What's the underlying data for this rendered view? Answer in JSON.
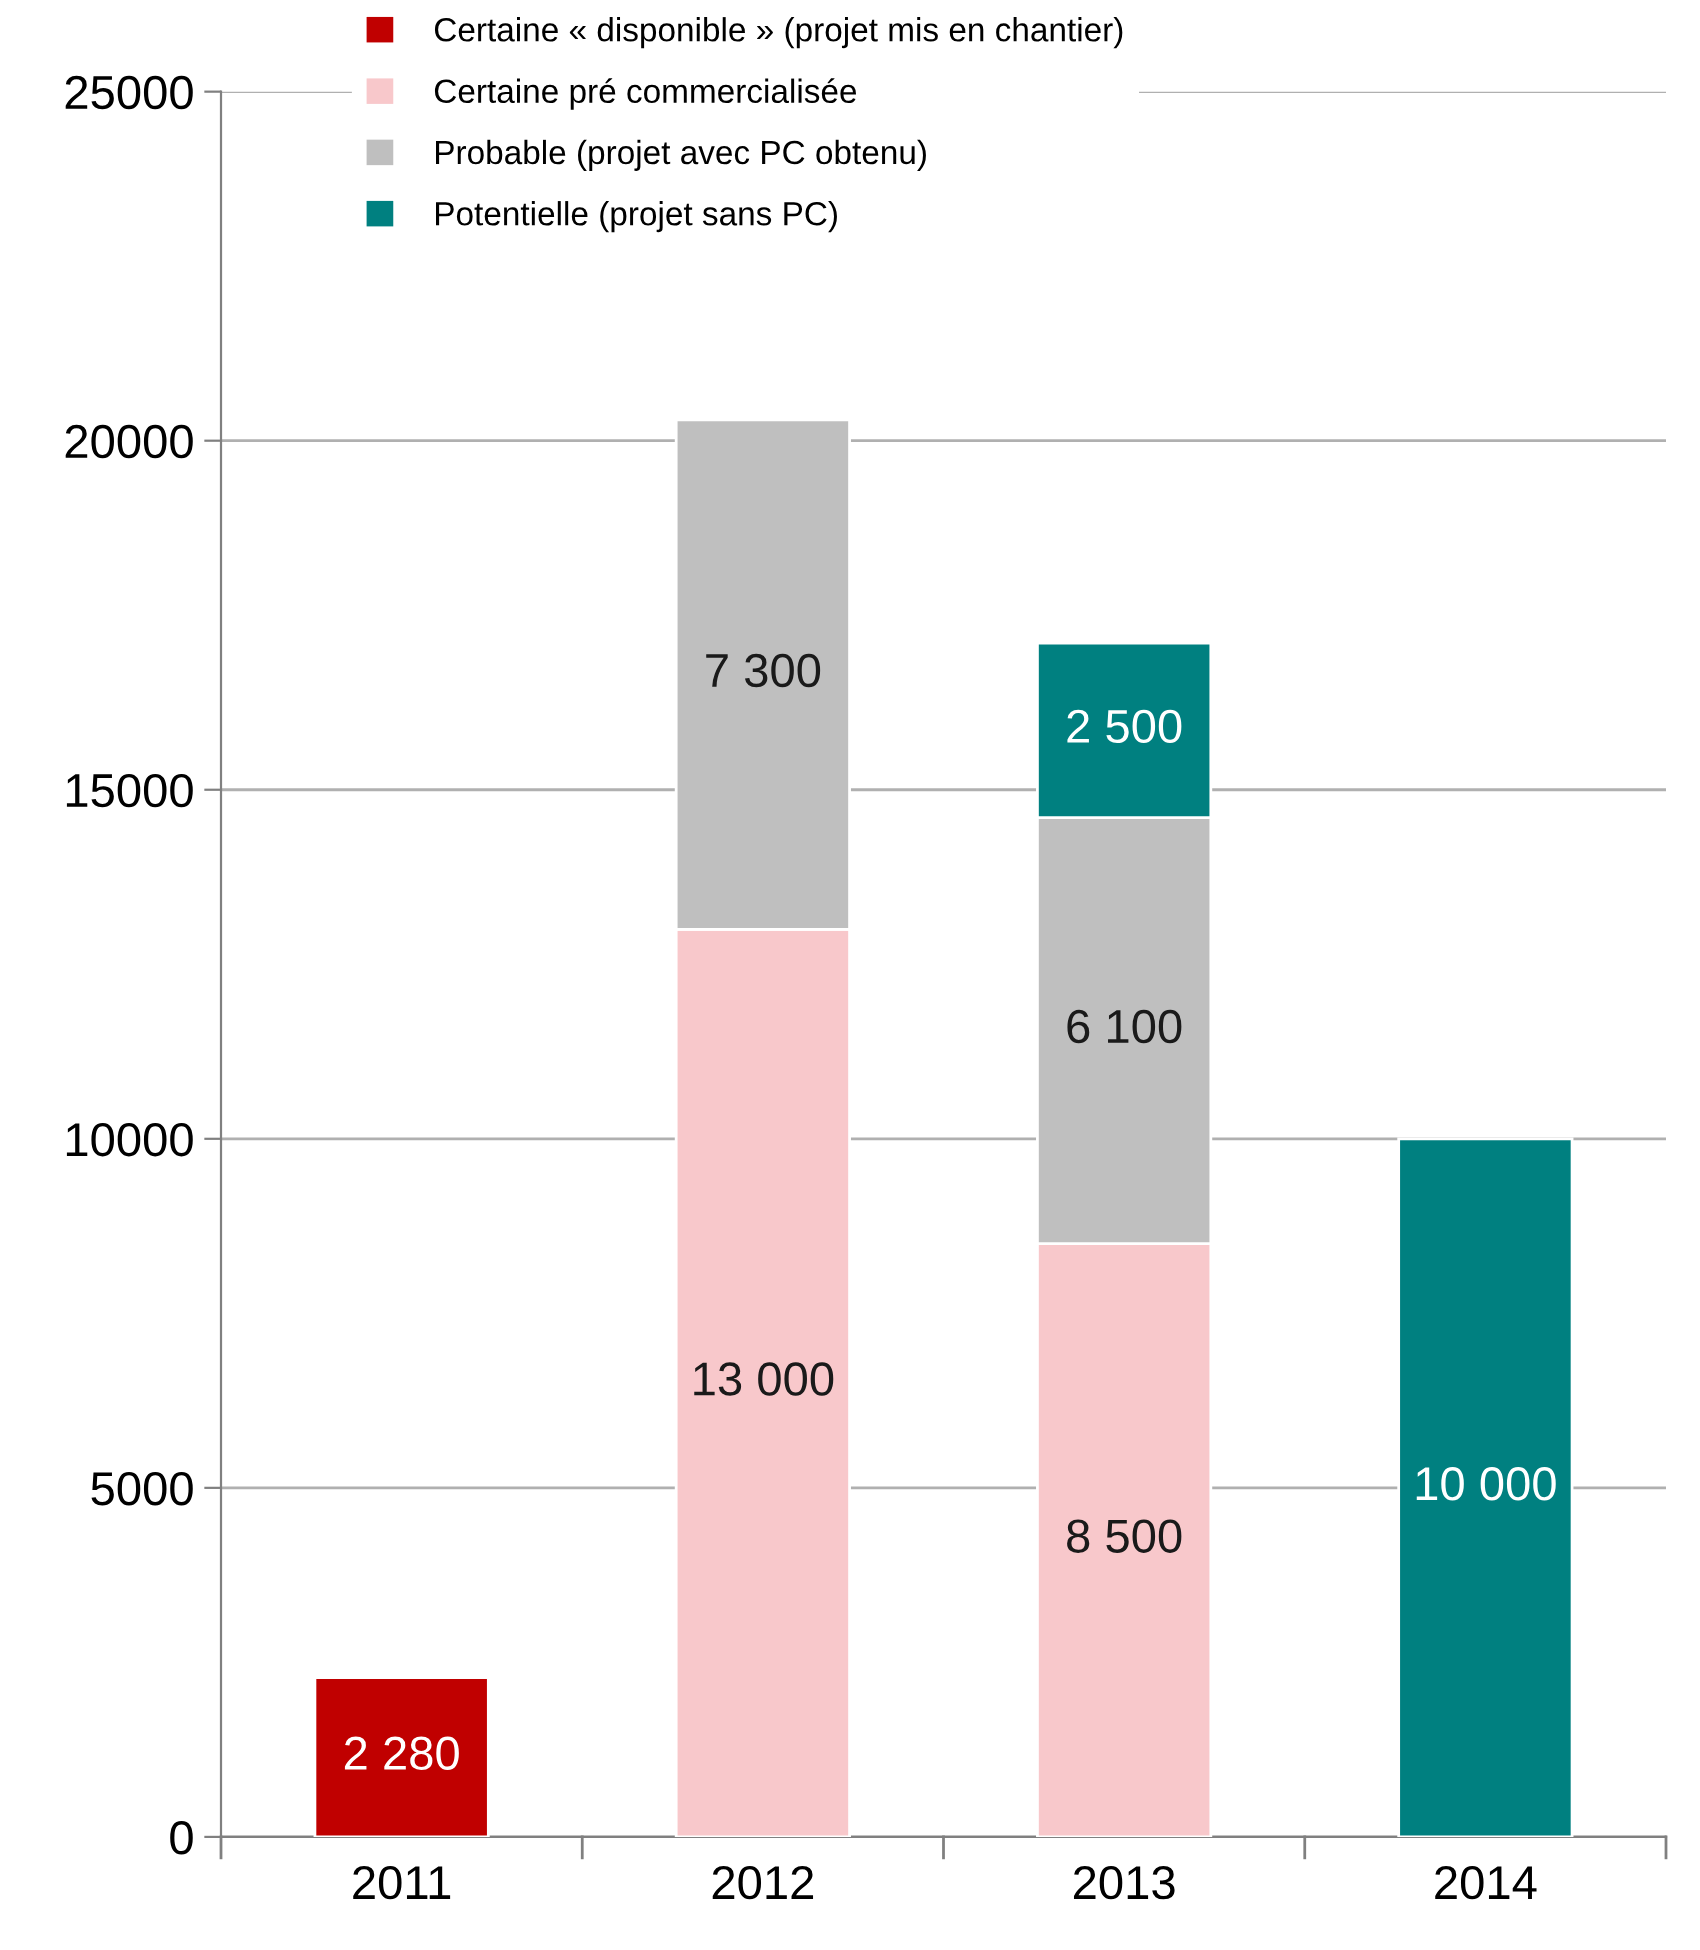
{
  "chart_data": {
    "type": "bar",
    "stacked": true,
    "categories": [
      "2011",
      "2012",
      "2013",
      "2014"
    ],
    "series": [
      {
        "name": "Certaine « disponible » (projet mis en chantier)",
        "color": "#c00000",
        "values": [
          2280,
          null,
          null,
          null
        ],
        "value_labels": [
          "2 280",
          null,
          null,
          null
        ]
      },
      {
        "name": "Certaine pré commercialisée",
        "color": "#f8c8cb",
        "values": [
          null,
          13000,
          8500,
          null
        ],
        "value_labels": [
          null,
          "13 000",
          "8 500",
          null
        ]
      },
      {
        "name": "Probable (projet avec PC obtenu)",
        "color": "#bfbfbf",
        "values": [
          null,
          7300,
          6100,
          null
        ],
        "value_labels": [
          null,
          "7 300",
          "6 100",
          null
        ]
      },
      {
        "name": "Potentielle (projet sans PC)",
        "color": "#008080",
        "values": [
          null,
          null,
          2500,
          10000
        ],
        "value_labels": [
          null,
          null,
          "2 500",
          "10 000"
        ]
      }
    ],
    "ylim": [
      0,
      25000
    ],
    "yticks": [
      0,
      5000,
      10000,
      15000,
      20000,
      25000
    ],
    "grid": "y",
    "legend": "top left"
  }
}
